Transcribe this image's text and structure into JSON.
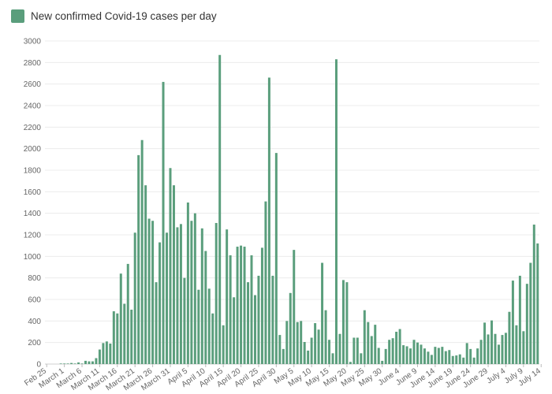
{
  "chart_data": {
    "type": "bar",
    "legend": {
      "label": "New confirmed Covid-19 cases per day",
      "position": "top-left"
    },
    "color": "#5a9e7c",
    "grid": true,
    "ylim": [
      0,
      3000
    ],
    "yticks": [
      0,
      200,
      400,
      600,
      800,
      1000,
      1200,
      1400,
      1600,
      1800,
      2000,
      2200,
      2400,
      2600,
      2800,
      3000
    ],
    "xtick_labels": [
      {
        "label": "Feb 25",
        "index": 0
      },
      {
        "label": "March 1",
        "index": 5
      },
      {
        "label": "March 6",
        "index": 10
      },
      {
        "label": "March 11",
        "index": 15
      },
      {
        "label": "March 16",
        "index": 20
      },
      {
        "label": "March 21",
        "index": 25
      },
      {
        "label": "March 26",
        "index": 30
      },
      {
        "label": "March 31",
        "index": 35
      },
      {
        "label": "April 5",
        "index": 40
      },
      {
        "label": "April 10",
        "index": 45
      },
      {
        "label": "April 15",
        "index": 50
      },
      {
        "label": "April 20",
        "index": 55
      },
      {
        "label": "April 25",
        "index": 60
      },
      {
        "label": "April 30",
        "index": 65
      },
      {
        "label": "May 5",
        "index": 70
      },
      {
        "label": "May 10",
        "index": 75
      },
      {
        "label": "May 15",
        "index": 80
      },
      {
        "label": "May 20",
        "index": 85
      },
      {
        "label": "May 25",
        "index": 90
      },
      {
        "label": "May 30",
        "index": 95
      },
      {
        "label": "June 4",
        "index": 100
      },
      {
        "label": "June 9",
        "index": 105
      },
      {
        "label": "June 14",
        "index": 110
      },
      {
        "label": "June 19",
        "index": 115
      },
      {
        "label": "June 24",
        "index": 120
      },
      {
        "label": "June 29",
        "index": 125
      },
      {
        "label": "July 4",
        "index": 130
      },
      {
        "label": "July 9",
        "index": 135
      },
      {
        "label": "July 14",
        "index": 140
      }
    ],
    "values": [
      0,
      0,
      0,
      0,
      5,
      5,
      5,
      10,
      5,
      15,
      5,
      30,
      25,
      25,
      55,
      135,
      195,
      210,
      190,
      490,
      470,
      840,
      560,
      930,
      505,
      1220,
      1940,
      2080,
      1660,
      1350,
      1330,
      760,
      1130,
      2620,
      1220,
      1820,
      1660,
      1270,
      1300,
      800,
      1500,
      1330,
      1400,
      690,
      1260,
      1050,
      700,
      470,
      1310,
      2870,
      360,
      1250,
      1010,
      620,
      1090,
      1100,
      1090,
      760,
      1010,
      640,
      820,
      1080,
      1510,
      2660,
      820,
      1960,
      270,
      140,
      400,
      660,
      1060,
      390,
      400,
      205,
      125,
      245,
      380,
      320,
      940,
      500,
      225,
      100,
      2830,
      280,
      780,
      760,
      20,
      245,
      245,
      100,
      500,
      390,
      260,
      365,
      150,
      30,
      140,
      225,
      240,
      300,
      325,
      175,
      165,
      145,
      225,
      200,
      180,
      145,
      115,
      85,
      160,
      150,
      160,
      120,
      130,
      75,
      80,
      90,
      60,
      195,
      140,
      60,
      145,
      225,
      385,
      275,
      405,
      280,
      180,
      270,
      290,
      485,
      775,
      360,
      820,
      305,
      745,
      940,
      1295,
      1120
    ]
  }
}
